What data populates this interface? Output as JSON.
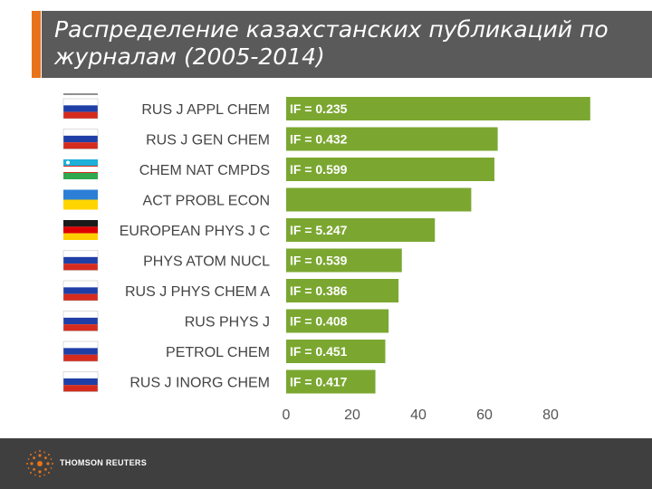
{
  "slide": {
    "title": "Распределение казахстанских публикаций по журналам (2005-2014)"
  },
  "footer": {
    "brand": "THOMSON REUTERS"
  },
  "colors": {
    "bar": "#7ba731",
    "accent": "#e8731a",
    "title_bg": "#5a5a5a",
    "footer_bg": "#3f3f3f"
  },
  "chart_data": {
    "type": "bar",
    "orientation": "horizontal",
    "categories": [
      "RUS J APPL CHEM",
      "RUS J GEN CHEM",
      "CHEM NAT CMPDS",
      "ACT PROBL ECON",
      "EUROPEAN PHYS J C",
      "PHYS ATOM NUCL",
      "RUS J PHYS CHEM A",
      "RUS PHYS J",
      "PETROL CHEM",
      "RUS J INORG CHEM"
    ],
    "values": [
      92,
      64,
      63,
      56,
      45,
      35,
      34,
      31,
      30,
      27
    ],
    "bar_labels": [
      "IF = 0.235",
      "IF = 0.432",
      "IF = 0.599",
      "",
      "IF = 5.247",
      "IF = 0.539",
      "IF = 0.386",
      "IF = 0.408",
      "IF = 0.451",
      "IF = 0.417"
    ],
    "flags": [
      "russia",
      "russia",
      "uzbekistan",
      "ukraine",
      "germany",
      "russia",
      "russia",
      "russia",
      "russia",
      "russia"
    ],
    "xlim": [
      0,
      95
    ],
    "xticks": [
      "0",
      "20",
      "40",
      "60",
      "80"
    ],
    "xtick_values": [
      0,
      20,
      40,
      60,
      80
    ],
    "grid": false,
    "legend": "none"
  }
}
